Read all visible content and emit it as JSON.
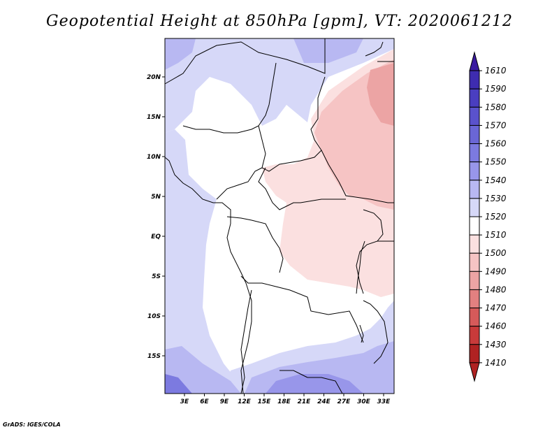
{
  "title": "Geopotential Height at 850hPa [gpm], VT: 2020061212",
  "credit": "GrADS: IGES/COLA",
  "map": {
    "lon_labels": [
      "3E",
      "6E",
      "9E",
      "12E",
      "15E",
      "18E",
      "21E",
      "24E",
      "27E",
      "30E",
      "33E"
    ],
    "lat_labels": [
      "20N",
      "15N",
      "10N",
      "5N",
      "EQ",
      "5S",
      "10S",
      "15S"
    ]
  },
  "colorbar": {
    "levels": [
      "1610",
      "1590",
      "1580",
      "1570",
      "1560",
      "1550",
      "1540",
      "1530",
      "1520",
      "1510",
      "1500",
      "1490",
      "1480",
      "1470",
      "1460",
      "1430",
      "1410"
    ],
    "colors": [
      "#3a1aa0",
      "#3e2cb0",
      "#4a3ec0",
      "#5a52cc",
      "#6a66d6",
      "#7c7ae0",
      "#9896ea",
      "#b8b8f2",
      "#d6d8f8",
      "#ffffff",
      "#fbe0e0",
      "#f6c4c4",
      "#eca4a4",
      "#e28080",
      "#d65a5a",
      "#c83a3a",
      "#b02222"
    ]
  }
}
